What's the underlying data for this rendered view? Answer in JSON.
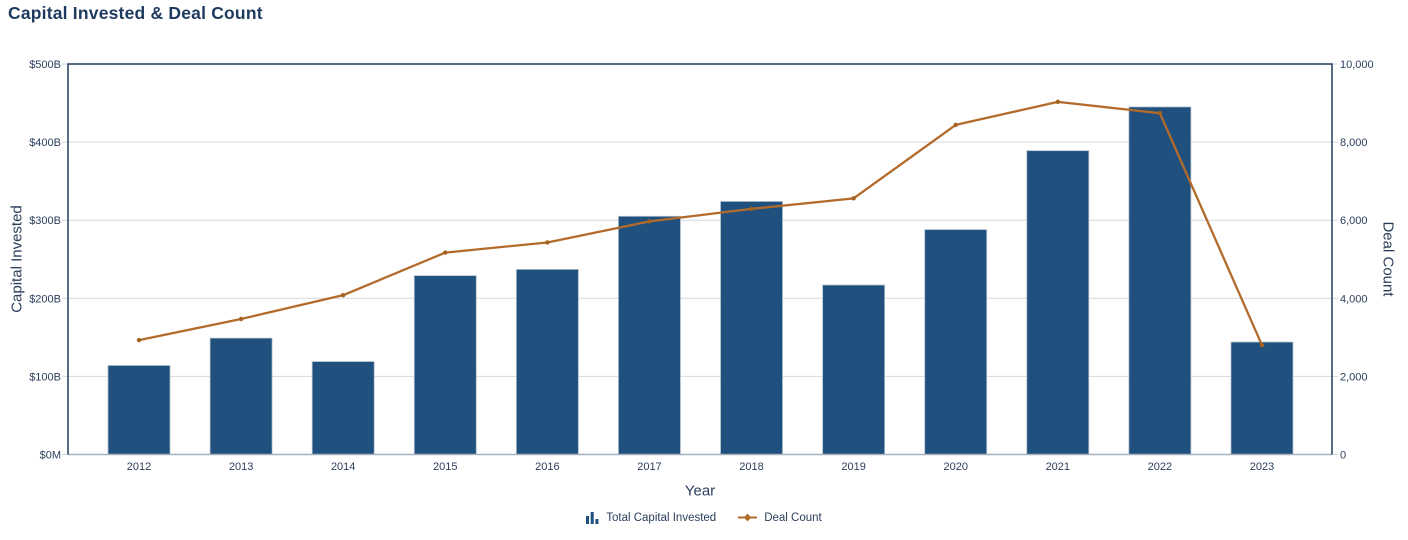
{
  "chart_data": {
    "type": "bar",
    "combo": "bar+line dual axis",
    "title": "Capital Invested & Deal Count",
    "xlabel": "Year",
    "ylabel_left": "Capital Invested",
    "ylabel_right": "Deal Count",
    "categories": [
      "2012",
      "2013",
      "2014",
      "2015",
      "2016",
      "2017",
      "2018",
      "2019",
      "2020",
      "2021",
      "2022",
      "2023"
    ],
    "series": [
      {
        "name": "Total Capital Invested",
        "type": "bar",
        "axis": "left",
        "unit": "$B",
        "values": [
          114,
          149,
          119,
          229,
          237,
          305,
          324,
          217,
          288,
          389,
          445,
          144
        ]
      },
      {
        "name": "Deal Count",
        "type": "line",
        "axis": "right",
        "values": [
          2930,
          3470,
          4080,
          5170,
          5430,
          5970,
          6290,
          6560,
          8440,
          9030,
          8740,
          2800
        ]
      }
    ],
    "ylim_left": [
      0,
      500
    ],
    "ylim_right": [
      0,
      10000
    ],
    "yticks_left": {
      "values": [
        0,
        100,
        200,
        300,
        400,
        500
      ],
      "labels": [
        "$0M",
        "$100B",
        "$200B",
        "$300B",
        "$400B",
        "$500B"
      ]
    },
    "yticks_right": {
      "values": [
        0,
        2000,
        4000,
        6000,
        8000,
        10000
      ],
      "labels": [
        "0",
        "2,000",
        "4,000",
        "6,000",
        "8,000",
        "10,000"
      ]
    },
    "grid": true,
    "legend_position": "bottom"
  },
  "legend": {
    "items": [
      {
        "label": "Total Capital Invested",
        "marker": "bar-icon"
      },
      {
        "label": "Deal Count",
        "marker": "line-icon"
      }
    ]
  },
  "colors": {
    "bar": "#20507E",
    "bar_edge": "#AEBFCB",
    "line": "#B26B2B",
    "marker": "#A4621F",
    "title_text": "#1F3A5F",
    "axis_text": "#2A3E5C",
    "gridline": "#D9D9D9",
    "tick": "#D0D4DA",
    "plot_border": "#1E3A5F",
    "x_axis_line": "#A5B1BD",
    "background": "#FFFFFF"
  }
}
